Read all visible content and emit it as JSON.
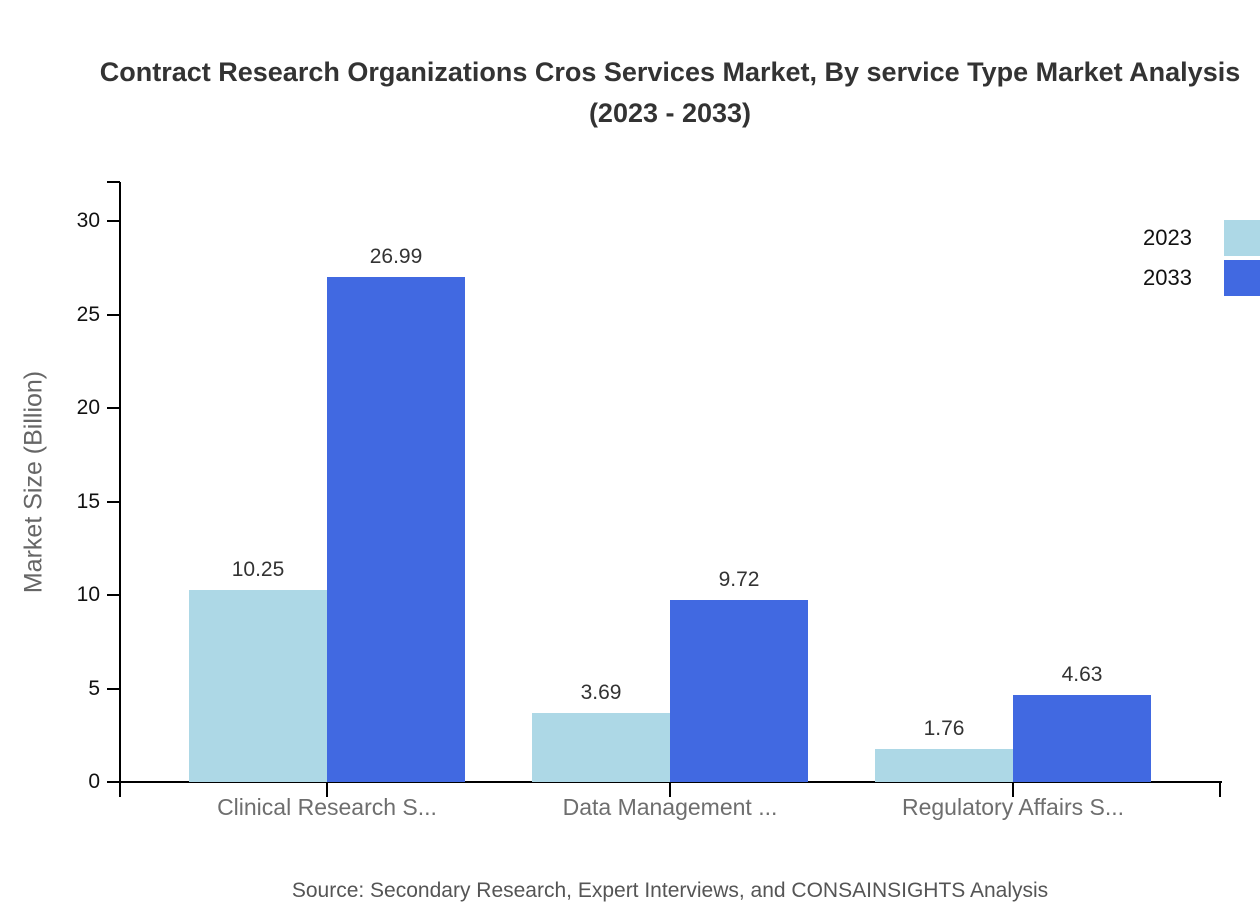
{
  "title": "Contract Research Organizations Cros Services Market, By service Type Market Analysis (2023 - 2033)",
  "ylabel": "Market Size (Billion)",
  "source": "Source: Secondary Research, Expert Interviews, and CONSAINSIGHTS Analysis",
  "legend": [
    {
      "label": "2023",
      "color": "#ADD8E6"
    },
    {
      "label": "2033",
      "color": "#4169E1"
    }
  ],
  "chart_data": {
    "type": "bar",
    "title": "Contract Research Organizations Cros Services Market, By service Type Market Analysis (2023 - 2033)",
    "categories": [
      "Clinical Research S...",
      "Data Management ...",
      "Regulatory Affairs S..."
    ],
    "series": [
      {
        "name": "2023",
        "color": "#ADD8E6",
        "values": [
          10.25,
          3.69,
          1.76
        ]
      },
      {
        "name": "2033",
        "color": "#4169E1",
        "values": [
          26.99,
          9.72,
          4.63
        ]
      }
    ],
    "xlabel": "",
    "ylabel": "Market Size (Billion)",
    "ylim": [
      0,
      30
    ],
    "yticks": [
      0,
      5,
      10,
      15,
      20,
      25,
      30
    ],
    "grid": false,
    "legend_position": "top-right",
    "value_labels_decimals": 2
  }
}
